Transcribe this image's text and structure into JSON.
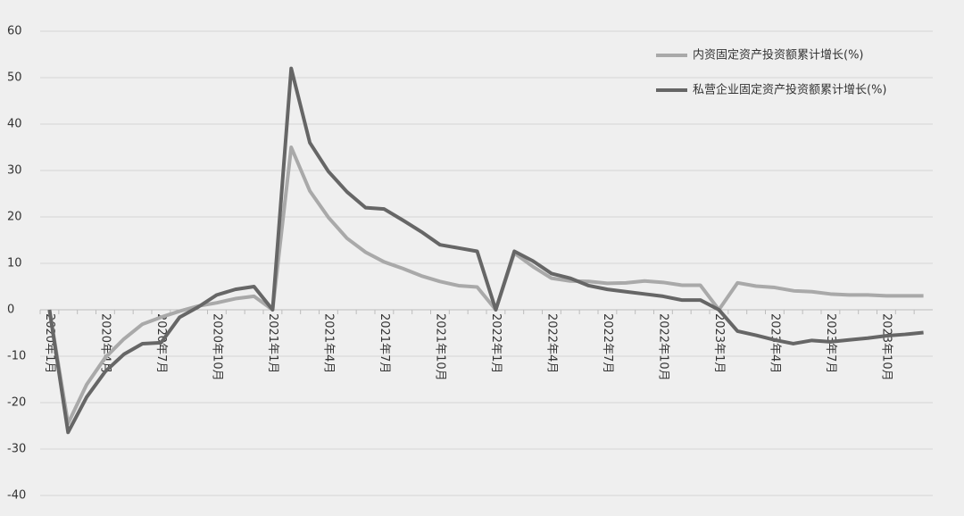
{
  "chart_data": {
    "type": "line",
    "categories": [
      "2020年1月",
      null,
      null,
      "2020年4月",
      null,
      null,
      "2020年7月",
      null,
      null,
      "2020年10月",
      null,
      null,
      "2021年1月",
      null,
      null,
      "2021年4月",
      null,
      null,
      "2021年7月",
      null,
      null,
      "2021年10月",
      null,
      null,
      "2022年1月",
      null,
      null,
      "2022年4月",
      null,
      null,
      "2022年7月",
      null,
      null,
      "2022年10月",
      null,
      null,
      "2023年1月",
      null,
      null,
      "2023年4月",
      null,
      null,
      "2023年7月",
      null,
      null,
      "2023年10月",
      null,
      null
    ],
    "series": [
      {
        "name": "内资固定资产投资额累计增长(%)",
        "color": "#a9a9a9",
        "values": [
          0,
          -24.5,
          -16.1,
          -10.3,
          -6.3,
          -3.1,
          -1.6,
          -0.3,
          0.8,
          1.5,
          2.4,
          2.9,
          0,
          35.0,
          25.6,
          19.9,
          15.4,
          12.4,
          10.3,
          8.9,
          7.3,
          6.1,
          5.2,
          4.9,
          0,
          12.2,
          9.3,
          6.8,
          6.2,
          6.1,
          5.7,
          5.8,
          6.2,
          5.9,
          5.3,
          5.3,
          0,
          5.8,
          5.1,
          4.8,
          4.1,
          3.9,
          3.4,
          3.2,
          3.2,
          3.0,
          3.0,
          3.0
        ]
      },
      {
        "name": "私营企业固定资产投资额累计增长(%)",
        "color": "#666666",
        "values": [
          0,
          -26.4,
          -18.8,
          -13.3,
          -9.6,
          -7.3,
          -7.1,
          -1.6,
          0.6,
          3.2,
          4.4,
          5.0,
          0,
          52.0,
          36.0,
          29.8,
          25.4,
          22.0,
          21.7,
          19.3,
          16.8,
          14.0,
          13.3,
          12.6,
          0,
          12.6,
          10.5,
          7.8,
          6.8,
          5.2,
          4.4,
          3.9,
          3.4,
          2.9,
          2.1,
          2.1,
          0,
          -4.6,
          -5.5,
          -6.5,
          -7.3,
          -6.6,
          -6.9,
          -6.5,
          -6.1,
          -5.6,
          -5.3,
          -4.9
        ]
      }
    ],
    "ylim": [
      -40,
      60
    ],
    "yticks": [
      -40,
      -30,
      -20,
      -10,
      0,
      10,
      20,
      30,
      40,
      50,
      60
    ],
    "grid": true,
    "legend": "upper right"
  }
}
